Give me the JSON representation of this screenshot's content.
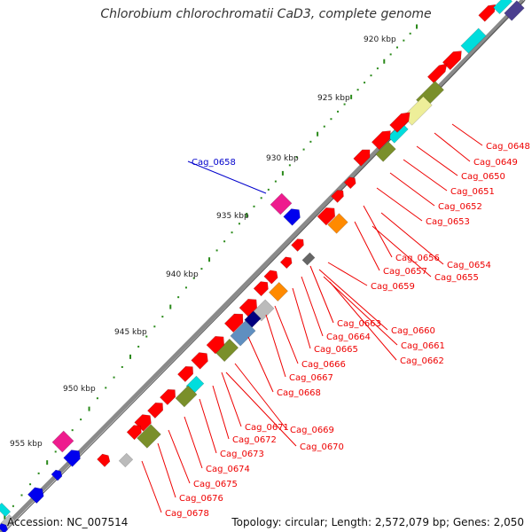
{
  "title": "Chlorobium chlorochromatii CaD3, complete genome",
  "footer": {
    "accession": "Accession: NC_007514",
    "summary": "Topology: circular; Length: 2,572,079 bp; Genes: 2,050"
  },
  "colors": {
    "backbone": "#888888",
    "tick": "#2a8a1a",
    "cds": "#ff0000",
    "label_red": "#ee0000",
    "label_blue": "#0000cc"
  },
  "tick_labels": [
    "920 kbp",
    "925 kbp",
    "930 kbp",
    "935 kbp",
    "940 kbp",
    "945 kbp",
    "950 kbp",
    "955 kbp"
  ],
  "gene_labels": [
    {
      "text": "Cag_0658",
      "color": "blue"
    },
    {
      "text": "Cag_0648",
      "color": "red"
    },
    {
      "text": "Cag_0649",
      "color": "red"
    },
    {
      "text": "Cag_0650",
      "color": "red"
    },
    {
      "text": "Cag_0651",
      "color": "red"
    },
    {
      "text": "Cag_0652",
      "color": "red"
    },
    {
      "text": "Cag_0653",
      "color": "red"
    },
    {
      "text": "Cag_0656",
      "color": "red"
    },
    {
      "text": "Cag_0654",
      "color": "red"
    },
    {
      "text": "Cag_0657",
      "color": "red"
    },
    {
      "text": "Cag_0655",
      "color": "red"
    },
    {
      "text": "Cag_0659",
      "color": "red"
    },
    {
      "text": "Cag_0663",
      "color": "red"
    },
    {
      "text": "Cag_0660",
      "color": "red"
    },
    {
      "text": "Cag_0664",
      "color": "red"
    },
    {
      "text": "Cag_0661",
      "color": "red"
    },
    {
      "text": "Cag_0665",
      "color": "red"
    },
    {
      "text": "Cag_0662",
      "color": "red"
    },
    {
      "text": "Cag_0666",
      "color": "red"
    },
    {
      "text": "Cag_0667",
      "color": "red"
    },
    {
      "text": "Cag_0668",
      "color": "red"
    },
    {
      "text": "Cag_0671",
      "color": "red"
    },
    {
      "text": "Cag_0669",
      "color": "red"
    },
    {
      "text": "Cag_0672",
      "color": "red"
    },
    {
      "text": "Cag_0670",
      "color": "red"
    },
    {
      "text": "Cag_0673",
      "color": "red"
    },
    {
      "text": "Cag_0674",
      "color": "red"
    },
    {
      "text": "Cag_0675",
      "color": "red"
    },
    {
      "text": "Cag_0676",
      "color": "red"
    },
    {
      "text": "Cag_0678",
      "color": "red"
    }
  ]
}
